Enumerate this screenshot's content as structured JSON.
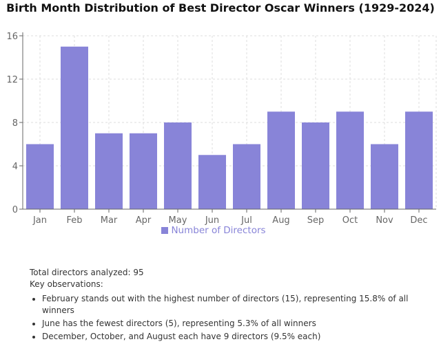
{
  "chart_data": {
    "type": "bar",
    "title": "Birth Month Distribution of Best Director Oscar Winners (1929-2024)",
    "categories": [
      "Jan",
      "Feb",
      "Mar",
      "Apr",
      "May",
      "Jun",
      "Jul",
      "Aug",
      "Sep",
      "Oct",
      "Nov",
      "Dec"
    ],
    "series": [
      {
        "name": "Number of Directors",
        "values": [
          6,
          15,
          7,
          7,
          8,
          5,
          6,
          9,
          8,
          9,
          6,
          9
        ],
        "color": "#8884d8"
      }
    ],
    "yticks": [
      0,
      4,
      8,
      12,
      16
    ],
    "ylim": [
      0,
      16
    ],
    "grid": true,
    "legend": "bottom"
  },
  "notes": {
    "total": "Total directors analyzed: 95",
    "heading": "Key observations:",
    "items": [
      "February stands out with the highest number of directors (15), representing 15.8% of all winners",
      "June has the fewest directors (5), representing 5.3% of all winners",
      "December, October, and August each have 9 directors (9.5% each)"
    ]
  }
}
